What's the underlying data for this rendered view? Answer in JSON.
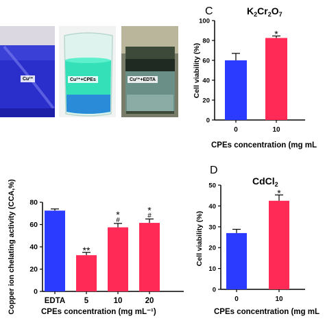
{
  "photos": {
    "labels": [
      "Cu²⁺",
      "Cu²⁺+CPEs",
      "Cu²⁺+EDTA"
    ]
  },
  "colors": {
    "blue": "#2b3bff",
    "red": "#ff2a55",
    "axis": "#000000"
  },
  "chart_data": [
    {
      "type": "bar",
      "panel": "",
      "title": "",
      "categories": [
        "EDTA",
        "5",
        "10",
        "20"
      ],
      "values": [
        72.5,
        32.5,
        57.5,
        61.5
      ],
      "errors": [
        1.5,
        2.5,
        3.5,
        3.5
      ],
      "bar_colors": [
        "#2b3bff",
        "#ff2a55",
        "#ff2a55",
        "#ff2a55"
      ],
      "annotations": [
        [
          "",
          ""
        ],
        [
          "",
          "**"
        ],
        [
          "#",
          "*"
        ],
        [
          "#",
          "*"
        ]
      ],
      "xlabel": "CPEs concentration (mg mL⁻¹)",
      "ylabel": "Copper ion chelating activity (CCA,%)",
      "ylim": [
        0,
        80
      ],
      "yticks": [
        0,
        20,
        40,
        60,
        80
      ]
    },
    {
      "type": "bar",
      "panel": "C",
      "title_parts": [
        [
          "K",
          "2",
          "Cr",
          "2",
          "O",
          "7"
        ]
      ],
      "categories": [
        "0",
        "10"
      ],
      "values": [
        60,
        82.5
      ],
      "errors": [
        7,
        2
      ],
      "bar_colors": [
        "#2b3bff",
        "#ff2a55"
      ],
      "annotations": [
        [
          ""
        ],
        [
          "*"
        ]
      ],
      "xlabel": "CPEs concentration (mg mL",
      "ylabel": "Cell viability (%)",
      "ylim": [
        0,
        100
      ],
      "yticks": [
        0,
        20,
        40,
        60,
        80,
        100
      ]
    },
    {
      "type": "bar",
      "panel": "D",
      "title_parts": [
        [
          "CdCl",
          "2"
        ]
      ],
      "categories": [
        "0",
        "10"
      ],
      "values": [
        27,
        42.5
      ],
      "errors": [
        1.8,
        2.8
      ],
      "bar_colors": [
        "#2b3bff",
        "#ff2a55"
      ],
      "annotations": [
        [
          ""
        ],
        [
          "*"
        ]
      ],
      "xlabel": "CPEs concentration (mg mL",
      "ylabel": "Cell viability (%)",
      "ylim": [
        0,
        50
      ],
      "yticks": [
        0,
        10,
        20,
        30,
        40,
        50
      ]
    }
  ]
}
